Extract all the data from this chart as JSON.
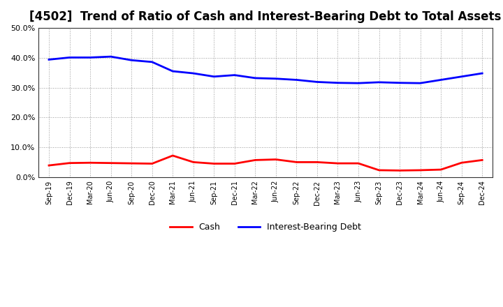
{
  "title": "[4502]  Trend of Ratio of Cash and Interest-Bearing Debt to Total Assets",
  "x_labels": [
    "Sep-19",
    "Dec-19",
    "Mar-20",
    "Jun-20",
    "Sep-20",
    "Dec-20",
    "Mar-21",
    "Jun-21",
    "Sep-21",
    "Dec-21",
    "Mar-22",
    "Jun-22",
    "Sep-22",
    "Dec-22",
    "Mar-23",
    "Jun-23",
    "Sep-23",
    "Dec-23",
    "Mar-24",
    "Jun-24",
    "Sep-24",
    "Dec-24"
  ],
  "cash": [
    3.9,
    4.7,
    4.8,
    4.7,
    4.6,
    4.5,
    7.2,
    5.0,
    4.5,
    4.5,
    5.7,
    5.9,
    5.0,
    5.0,
    4.6,
    4.6,
    2.3,
    2.2,
    2.3,
    2.5,
    4.8,
    5.7
  ],
  "interest_bearing_debt": [
    39.4,
    40.1,
    40.1,
    40.4,
    39.2,
    38.6,
    35.5,
    34.8,
    33.7,
    34.2,
    33.2,
    33.0,
    32.6,
    31.9,
    31.6,
    31.5,
    31.8,
    31.6,
    31.5,
    32.6,
    33.7,
    34.8
  ],
  "cash_color": "#FF0000",
  "debt_color": "#0000FF",
  "ylim": [
    0.0,
    50.0
  ],
  "yticks": [
    0.0,
    10.0,
    20.0,
    30.0,
    40.0,
    50.0
  ],
  "background_color": "#FFFFFF",
  "plot_bg_color": "#FFFFFF",
  "grid_color": "#999999",
  "title_fontsize": 12,
  "legend_cash": "Cash",
  "legend_debt": "Interest-Bearing Debt"
}
